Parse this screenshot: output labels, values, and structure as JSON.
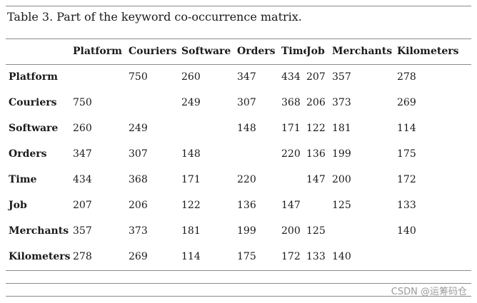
{
  "caption": "Table 3. Part of the keyword co-occurrence matrix.",
  "columns": [
    "Platform",
    "Couriers",
    "Software",
    "Orders",
    "Time",
    "Job",
    "Merchants",
    "Kilometers"
  ],
  "rows": [
    {
      "label": "Platform",
      "cells": [
        "",
        "750",
        "260",
        "347",
        "434",
        "207",
        "357",
        "278"
      ]
    },
    {
      "label": "Couriers",
      "cells": [
        "750",
        "",
        "249",
        "307",
        "368",
        "206",
        "373",
        "269"
      ]
    },
    {
      "label": "Software",
      "cells": [
        "260",
        "249",
        "",
        "148",
        "171",
        "122",
        "181",
        "114"
      ]
    },
    {
      "label": "Orders",
      "cells": [
        "347",
        "307",
        "148",
        "",
        "220",
        "136",
        "199",
        "175"
      ]
    },
    {
      "label": "Time",
      "cells": [
        "434",
        "368",
        "171",
        "220",
        "",
        "147",
        "200",
        "172"
      ]
    },
    {
      "label": "Job",
      "cells": [
        "207",
        "206",
        "122",
        "136",
        "147",
        "",
        "125",
        "133"
      ]
    },
    {
      "label": "Merchants",
      "cells": [
        "357",
        "373",
        "181",
        "199",
        "200",
        "125",
        "",
        "140"
      ]
    },
    {
      "label": "Kilometers",
      "cells": [
        "278",
        "269",
        "114",
        "175",
        "172",
        "133",
        "140",
        ""
      ]
    }
  ],
  "watermark": "CSDN @运筹码仓"
}
